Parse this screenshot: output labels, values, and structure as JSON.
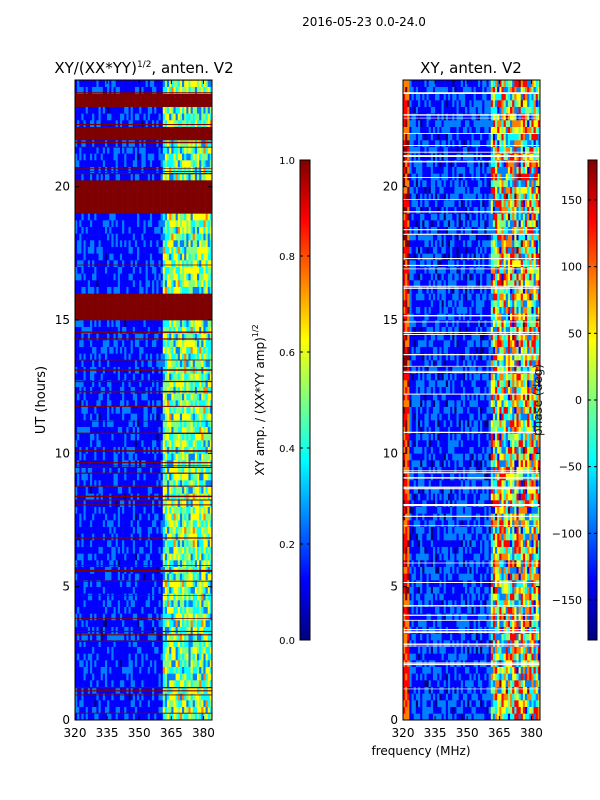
{
  "figure_title": "2016-05-23 0.0-24.0",
  "colors": {
    "jet": [
      "#00007f",
      "#0000ff",
      "#007fff",
      "#00ffff",
      "#7fff7f",
      "#ffff00",
      "#ff7f00",
      "#ff0000",
      "#7f0000"
    ]
  },
  "chart_data": [
    {
      "type": "heatmap",
      "title": "XY/(XX*YY)",
      "title_sup": "1/2",
      "title_suffix": ", anten. V2",
      "xlabel": "",
      "ylabel": "UT (hours)",
      "xlim": [
        320,
        384
      ],
      "ylim": [
        0,
        24
      ],
      "xticks": [
        320,
        335,
        350,
        365,
        380
      ],
      "xtick_labels": [
        "320",
        "335",
        "350",
        "365",
        "380"
      ],
      "yticks": [
        0,
        5,
        10,
        15,
        20
      ],
      "ytick_labels": [
        "0",
        "5",
        "10",
        "15",
        "20"
      ],
      "saturated_blocks_hours": [
        [
          15.1,
          16.0
        ],
        [
          19.0,
          20.3
        ],
        [
          21.8,
          22.3
        ],
        [
          23.0,
          23.4
        ]
      ],
      "strong_band_mhz": [
        361,
        384
      ],
      "colorbar": {
        "label": "XY amp. / (XX*YY amp)",
        "label_sup": "1/2",
        "range": [
          0.0,
          1.0
        ],
        "ticks": [
          0.0,
          0.2,
          0.4,
          0.6,
          0.8,
          1.0
        ],
        "tick_labels": [
          "0.0",
          "0.2",
          "0.4",
          "0.6",
          "0.8",
          "1.0"
        ]
      }
    },
    {
      "type": "heatmap",
      "title": "XY, anten. V2",
      "xlabel": "frequency (MHz)",
      "ylabel": "",
      "xlim": [
        320,
        384
      ],
      "ylim": [
        0,
        24
      ],
      "xticks": [
        320,
        335,
        350,
        365,
        380
      ],
      "xtick_labels": [
        "320",
        "335",
        "350",
        "365",
        "380"
      ],
      "yticks": [
        0,
        5,
        10,
        15,
        20
      ],
      "ytick_labels": [
        "0",
        "5",
        "10",
        "15",
        "20"
      ],
      "strong_band_mhz": [
        361,
        384
      ],
      "colorbar": {
        "label": "phase (deg)",
        "range": [
          -180,
          180
        ],
        "ticks": [
          -150,
          -100,
          -50,
          0,
          50,
          100,
          150
        ],
        "tick_labels": [
          "−150",
          "−100",
          "−50",
          "0",
          "50",
          "100",
          "150"
        ]
      }
    }
  ]
}
